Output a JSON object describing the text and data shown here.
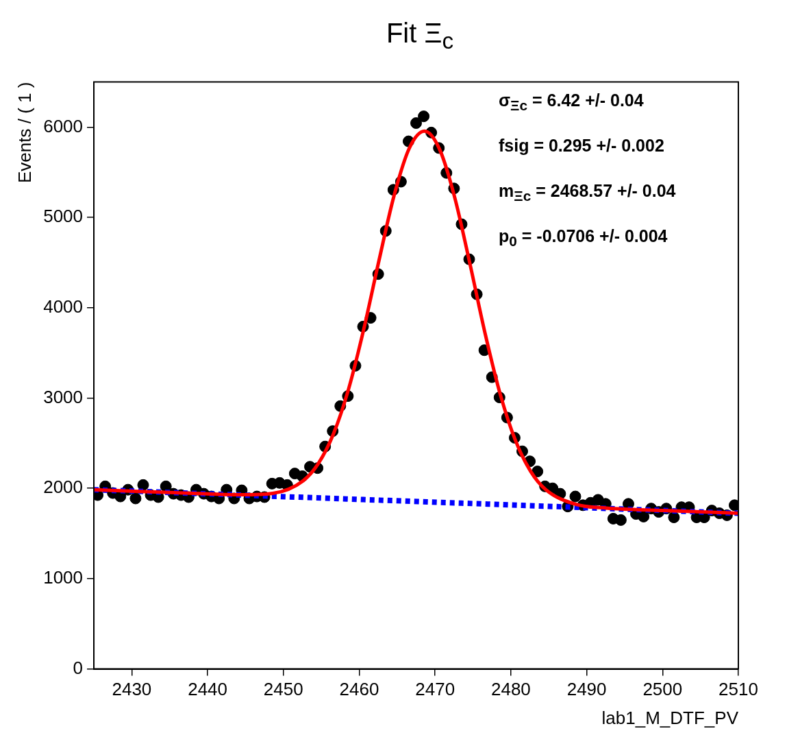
{
  "chart_data": {
    "type": "scatter",
    "title": "Fit Ξ$_{c}$",
    "xlabel": "lab1_M_DTF_PV",
    "ylabel": "Events / ( 1 )",
    "annotations": [
      "σ$_{Ξc}$ =  6.42 +/- 0.04",
      "fsig =  0.295 +/- 0.002",
      "m$_{Ξc}$ =  2468.57 +/- 0.04",
      "p$_{0}$ = -0.0706 +/- 0.004"
    ],
    "xlim": [
      2425,
      2510
    ],
    "xticks": [
      2430,
      2440,
      2450,
      2460,
      2470,
      2480,
      2490,
      2500,
      2510
    ],
    "ylim": [
      0,
      6500
    ],
    "yticks": [
      0,
      1000,
      2000,
      3000,
      4000,
      5000,
      6000
    ],
    "grid": false,
    "legend": false,
    "series": [
      {
        "color": "#000000",
        "marker": "circle",
        "x": [
          2425.5,
          2426.5,
          2427.5,
          2428.5,
          2429.5,
          2430.5,
          2431.5,
          2432.5,
          2433.5,
          2434.5,
          2435.5,
          2436.5,
          2437.5,
          2438.5,
          2439.5,
          2440.5,
          2441.5,
          2442.5,
          2443.5,
          2444.5,
          2445.5,
          2446.5,
          2447.5,
          2448.5,
          2449.5,
          2450.5,
          2451.5,
          2452.5,
          2453.5,
          2454.5,
          2455.5,
          2456.5,
          2457.5,
          2458.5,
          2459.5,
          2460.5,
          2461.5,
          2462.5,
          2463.5,
          2464.5,
          2465.5,
          2466.5,
          2467.5,
          2468.5,
          2469.5,
          2470.5,
          2471.5,
          2472.5,
          2473.5,
          2474.5,
          2475.5,
          2476.5,
          2477.5,
          2478.5,
          2479.5,
          2480.5,
          2481.5,
          2482.5,
          2483.5,
          2484.5,
          2485.5,
          2486.5,
          2487.5,
          2488.5,
          2489.5,
          2490.5,
          2491.5,
          2492.5,
          2493.5,
          2494.5,
          2495.5,
          2496.5,
          2497.5,
          2498.5,
          2499.5,
          2500.5,
          2501.5,
          2502.5,
          2503.5,
          2504.5,
          2505.5,
          2506.5,
          2507.5,
          2508.5,
          2509.5
        ],
        "values": [
          1925,
          2022,
          1948,
          1910,
          1985,
          1888,
          2037,
          1925,
          1903,
          2022,
          1940,
          1925,
          1903,
          1985,
          1940,
          1910,
          1888,
          1985,
          1888,
          1978,
          1888,
          1910,
          1903,
          2052,
          2060,
          2037,
          2164,
          2134,
          2239,
          2224,
          2463,
          2634,
          2911,
          3022,
          3358,
          3791,
          3888,
          4373,
          4851,
          5306,
          5396,
          5843,
          6045,
          6120,
          5940,
          5769,
          5493,
          5321,
          4925,
          4537,
          4149,
          3530,
          3231,
          3007,
          2784,
          2560,
          2410,
          2299,
          2187,
          2022,
          2000,
          1940,
          1799,
          1910,
          1813,
          1840,
          1873,
          1828,
          1664,
          1649,
          1828,
          1716,
          1687,
          1776,
          1739,
          1776,
          1679,
          1791,
          1791,
          1679,
          1679,
          1754,
          1724,
          1702,
          1813
        ]
      },
      {
        "type": "line",
        "color": "#0000ff",
        "marker": "none",
        "line_style": "dashed",
        "x": [
          2425,
          2510
        ],
        "values": [
          1985,
          1724
        ]
      },
      {
        "type": "line",
        "color": "#ff0000",
        "marker": "none",
        "line_style": "solid",
        "x": [
          2425,
          2440,
          2444.6,
          2448.6,
          2452.6,
          2454.6,
          2456.6,
          2458.6,
          2460.6,
          2462.6,
          2464.6,
          2466.6,
          2468.6,
          2470.6,
          2472.6,
          2474.6,
          2476.6,
          2478.6,
          2480.6,
          2482.6,
          2484.6,
          2488.6,
          2492.6,
          2500,
          2510
        ],
        "values": [
          1985,
          1939,
          1929,
          1945,
          2084,
          2274,
          2603,
          3102,
          3764,
          4522,
          5244,
          5766,
          5955,
          5754,
          5219,
          4486,
          3715,
          3041,
          2530,
          2189,
          1986,
          1822,
          1782,
          1755,
          1724
        ]
      }
    ]
  }
}
